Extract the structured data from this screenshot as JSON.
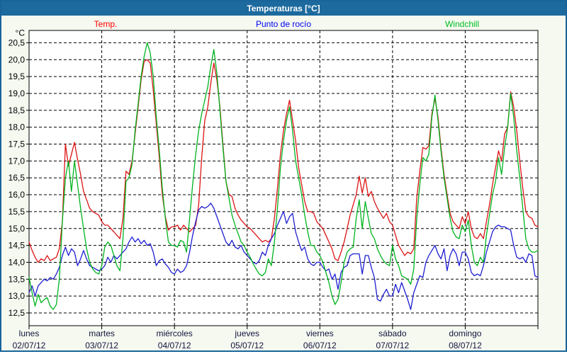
{
  "window": {
    "title": "Temperaturas [°C]",
    "titlebar_color": "#1c6a9e",
    "border_color": "#19649a",
    "background_color": "#f5f9f0",
    "plot_background": "#ffffff"
  },
  "legend": {
    "items": [
      {
        "label": "Temp.",
        "color": "#ff0000",
        "x": 147
      },
      {
        "label": "Punto de rocío",
        "color": "#0000ee",
        "x": 398
      },
      {
        "label": "Windchill",
        "color": "#00bb22",
        "x": 650
      }
    ]
  },
  "chart_data": {
    "type": "line",
    "title": "Temperaturas [°C]",
    "grid": "dashed black on white, horizontal every 0.5 °C, vertical at day boundaries",
    "legend_position": "top",
    "y_axis": {
      "unit_label": "°C",
      "min": 12.5,
      "max": 20.5,
      "step": 0.5,
      "tick_labels": [
        "20,5",
        "20,0",
        "19,5",
        "19,0",
        "18,5",
        "18,0",
        "17,5",
        "17,0",
        "16,5",
        "16,0",
        "15,5",
        "15,0",
        "14,5",
        "14,0",
        "13,5",
        "13,0",
        "12,5"
      ]
    },
    "x_axis": {
      "unit": "hours, hourly samples from lunes 02/07/12 00:00 to domingo 08/07/12 24:00",
      "hours_total": 168,
      "days": [
        {
          "name": "lunes",
          "date": "02/07/12"
        },
        {
          "name": "martes",
          "date": "03/07/12"
        },
        {
          "name": "miércoles",
          "date": "04/07/12"
        },
        {
          "name": "jueves",
          "date": "05/07/12"
        },
        {
          "name": "viernes",
          "date": "06/07/12"
        },
        {
          "name": "sábado",
          "date": "07/07/12"
        },
        {
          "name": "domingo",
          "date": "08/07/12"
        }
      ]
    },
    "series": [
      {
        "name": "Temp.",
        "color": "#dc1414",
        "values": [
          14.6,
          14.35,
          14.15,
          14.0,
          14.1,
          14.05,
          14.2,
          14.05,
          14.1,
          14.15,
          14.4,
          15.2,
          17.5,
          16.85,
          17.2,
          17.55,
          17.05,
          16.6,
          16.1,
          15.85,
          15.6,
          15.5,
          15.45,
          15.4,
          15.2,
          15.1,
          15.1,
          15.0,
          14.9,
          14.8,
          14.7,
          15.3,
          16.7,
          16.6,
          17.0,
          17.8,
          18.6,
          19.4,
          19.95,
          20.0,
          19.9,
          19.1,
          18.1,
          17.1,
          16.0,
          15.35,
          14.95,
          15.05,
          15.05,
          15.1,
          14.95,
          15.1,
          15.0,
          14.9,
          15.0,
          15.1,
          15.7,
          17.1,
          18.2,
          18.6,
          19.3,
          19.9,
          19.4,
          18.6,
          17.5,
          16.4,
          16.0,
          15.95,
          15.6,
          15.4,
          15.25,
          15.15,
          15.05,
          15.0,
          14.9,
          14.8,
          14.7,
          14.6,
          14.65,
          14.6,
          14.7,
          15.3,
          16.2,
          17.2,
          17.9,
          18.4,
          18.8,
          18.2,
          17.6,
          16.8,
          16.3,
          15.8,
          15.5,
          15.5,
          15.45,
          15.2,
          15.1,
          15.0,
          14.8,
          14.6,
          14.4,
          14.1,
          14.05,
          14.3,
          14.6,
          15.0,
          15.4,
          15.7,
          16.0,
          16.55,
          16.05,
          16.5,
          15.95,
          16.1,
          15.8,
          15.6,
          15.45,
          15.3,
          15.45,
          15.2,
          15.1,
          14.8,
          14.5,
          14.35,
          14.2,
          14.3,
          14.25,
          14.4,
          15.9,
          16.7,
          17.4,
          17.35,
          17.45,
          18.4,
          18.85,
          18.3,
          17.4,
          16.6,
          16.0,
          15.45,
          15.2,
          15.1,
          15.0,
          15.35,
          15.15,
          15.5,
          15.0,
          14.75,
          14.7,
          14.85,
          14.7,
          15.2,
          15.7,
          16.3,
          16.8,
          17.3,
          17.0,
          17.8,
          18.0,
          19.05,
          18.6,
          17.9,
          17.0,
          16.2,
          15.5,
          15.35,
          15.3,
          15.1,
          15.05
        ]
      },
      {
        "name": "Punto de rocío",
        "color": "#1e1ed2",
        "values": [
          13.1,
          13.3,
          13.0,
          13.3,
          13.4,
          13.5,
          13.45,
          13.55,
          13.5,
          13.65,
          13.85,
          14.2,
          14.45,
          14.2,
          14.4,
          14.3,
          13.9,
          14.1,
          14.35,
          14.1,
          13.9,
          13.85,
          13.8,
          13.75,
          13.8,
          13.9,
          14.15,
          14.0,
          14.2,
          14.1,
          14.2,
          14.3,
          14.4,
          14.6,
          14.75,
          14.6,
          14.7,
          14.55,
          14.65,
          14.5,
          14.55,
          14.3,
          13.9,
          14.05,
          14.1,
          13.95,
          13.85,
          13.7,
          13.65,
          13.8,
          13.7,
          13.75,
          13.9,
          14.3,
          14.8,
          15.2,
          15.55,
          15.65,
          15.6,
          15.65,
          15.75,
          15.6,
          15.35,
          15.1,
          14.85,
          14.6,
          14.5,
          14.65,
          14.45,
          14.4,
          14.5,
          14.3,
          14.2,
          14.1,
          14.0,
          13.95,
          14.05,
          14.3,
          14.2,
          14.5,
          14.7,
          14.85,
          15.1,
          15.3,
          15.5,
          15.15,
          15.35,
          15.45,
          14.9,
          14.6,
          14.35,
          14.45,
          14.1,
          13.95,
          13.9,
          14.0,
          14.0,
          13.85,
          13.75,
          13.8,
          13.5,
          13.65,
          13.2,
          13.7,
          13.85,
          13.9,
          14.2,
          14.25,
          14.25,
          14.25,
          13.65,
          14.2,
          14.2,
          13.85,
          13.55,
          12.9,
          12.85,
          13.05,
          13.2,
          13.0,
          13.0,
          13.35,
          13.1,
          13.4,
          13.15,
          12.9,
          12.6,
          13.1,
          13.35,
          13.6,
          13.55,
          14.0,
          14.2,
          14.35,
          14.5,
          14.25,
          14.1,
          14.4,
          13.75,
          14.2,
          14.4,
          14.25,
          13.9,
          14.3,
          14.3,
          14.1,
          13.7,
          13.6,
          13.65,
          13.6,
          13.9,
          14.3,
          14.6,
          14.9,
          15.05,
          15.1,
          15.05,
          15.05,
          15.0,
          14.95,
          14.5,
          14.15,
          14.1,
          14.15,
          14.0,
          14.25,
          14.2,
          13.6,
          13.55
        ]
      },
      {
        "name": "Windchill",
        "color": "#00b41e",
        "values": [
          13.55,
          13.1,
          12.7,
          13.05,
          12.8,
          12.9,
          12.95,
          12.7,
          12.6,
          12.75,
          13.5,
          15.2,
          16.5,
          17.0,
          16.1,
          17.0,
          16.3,
          15.6,
          15.0,
          14.4,
          14.0,
          13.8,
          13.7,
          13.65,
          13.9,
          14.45,
          14.6,
          14.5,
          14.2,
          13.9,
          13.75,
          14.7,
          16.4,
          16.5,
          16.9,
          17.9,
          18.7,
          19.5,
          20.1,
          20.5,
          20.2,
          19.5,
          18.3,
          17.3,
          16.2,
          15.3,
          14.6,
          14.5,
          14.5,
          14.45,
          14.65,
          14.6,
          14.3,
          15.3,
          16.3,
          17.2,
          17.9,
          18.4,
          18.8,
          19.2,
          19.8,
          20.3,
          19.6,
          18.5,
          17.4,
          16.4,
          15.9,
          15.4,
          15.1,
          14.85,
          14.6,
          14.5,
          14.3,
          14.15,
          13.95,
          13.8,
          13.65,
          13.6,
          13.7,
          14.1,
          13.9,
          14.6,
          15.6,
          16.8,
          17.6,
          18.2,
          18.6,
          17.9,
          17.0,
          16.5,
          16.0,
          15.4,
          14.9,
          14.5,
          14.5,
          14.3,
          14.2,
          14.0,
          13.7,
          13.4,
          13.0,
          12.75,
          12.9,
          13.4,
          14.0,
          14.3,
          14.4,
          14.45,
          15.3,
          15.85,
          15.0,
          15.8,
          15.3,
          14.85,
          14.7,
          14.4,
          14.2,
          14.05,
          13.95,
          13.9,
          14.5,
          14.1,
          13.9,
          13.6,
          13.55,
          13.5,
          13.35,
          13.8,
          15.3,
          16.3,
          17.1,
          17.0,
          17.2,
          18.3,
          18.95,
          18.2,
          17.3,
          16.5,
          15.9,
          15.3,
          14.9,
          14.75,
          14.7,
          15.1,
          14.9,
          15.25,
          14.5,
          14.0,
          13.9,
          14.15,
          14.0,
          14.8,
          15.4,
          16.0,
          16.4,
          17.1,
          16.6,
          17.4,
          18.0,
          19.0,
          18.3,
          17.3,
          16.5,
          15.6,
          14.7,
          14.4,
          14.3,
          14.3,
          14.35
        ]
      }
    ]
  }
}
